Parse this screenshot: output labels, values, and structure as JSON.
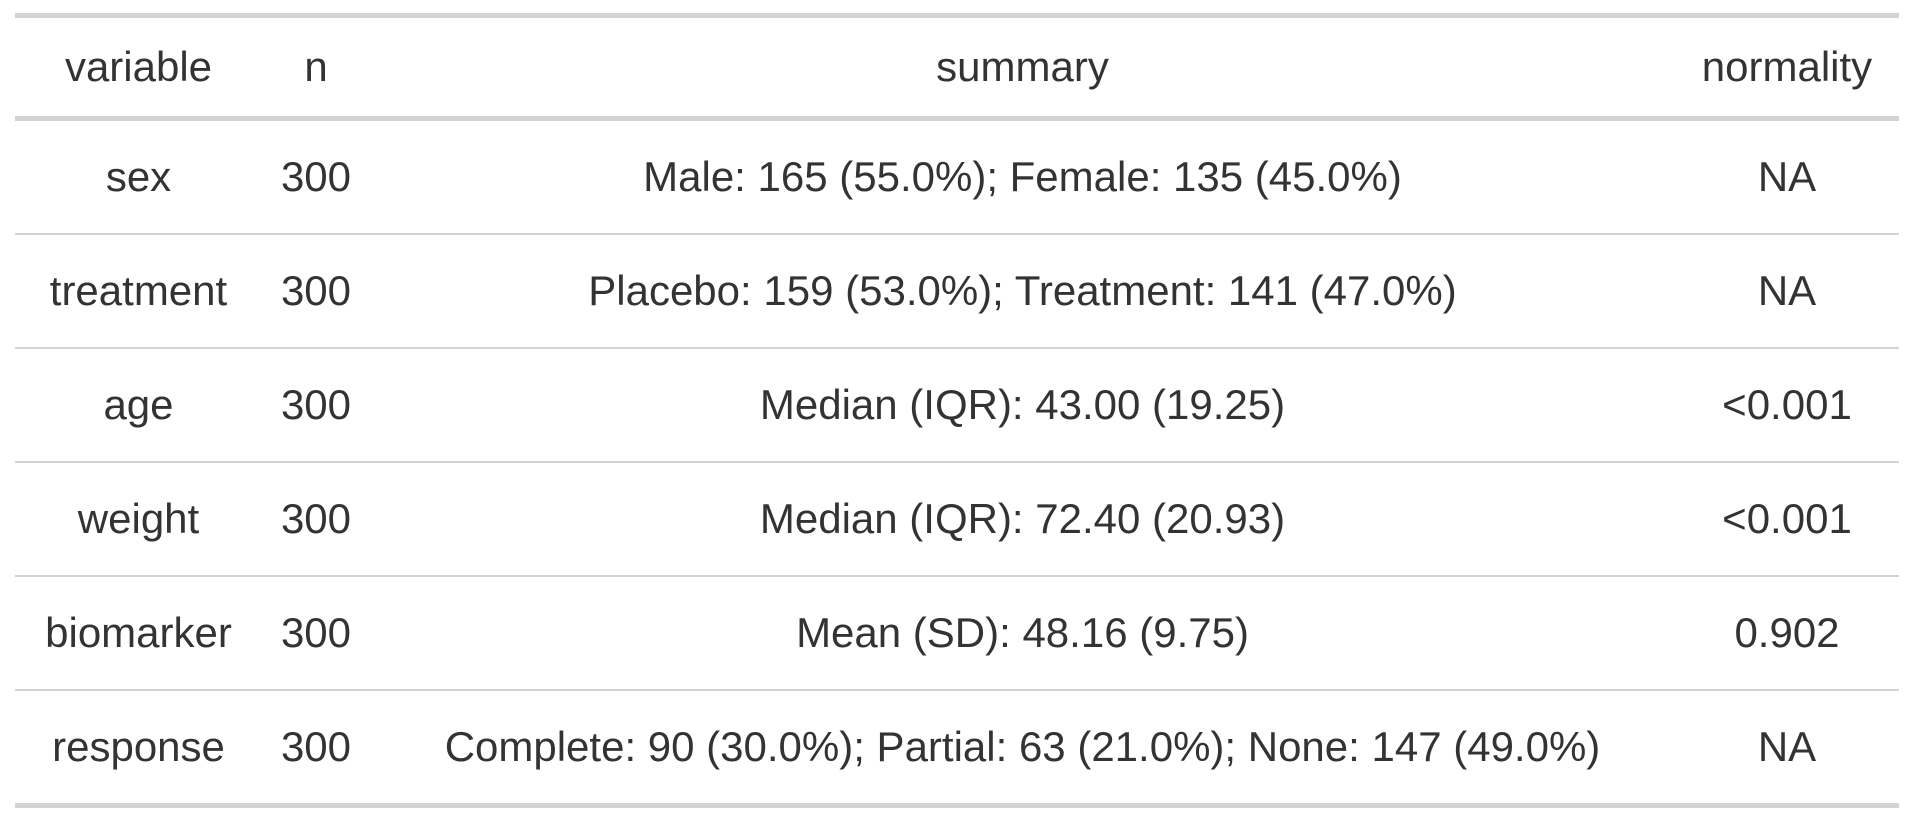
{
  "table": {
    "columns": [
      "variable",
      "n",
      "summary",
      "normality"
    ],
    "rows": [
      [
        "sex",
        "300",
        "Male: 165 (55.0%); Female: 135 (45.0%)",
        "NA"
      ],
      [
        "treatment",
        "300",
        "Placebo: 159 (53.0%); Treatment: 141 (47.0%)",
        "NA"
      ],
      [
        "age",
        "300",
        "Median (IQR): 43.00 (19.25)",
        "<0.001"
      ],
      [
        "weight",
        "300",
        "Median (IQR): 72.40 (20.93)",
        "<0.001"
      ],
      [
        "biomarker",
        "300",
        "Mean (SD): 48.16 (9.75)",
        "0.902"
      ],
      [
        "response",
        "300",
        "Complete: 90 (30.0%); Partial: 63 (21.0%); None: 147 (49.0%)",
        "NA"
      ]
    ]
  }
}
